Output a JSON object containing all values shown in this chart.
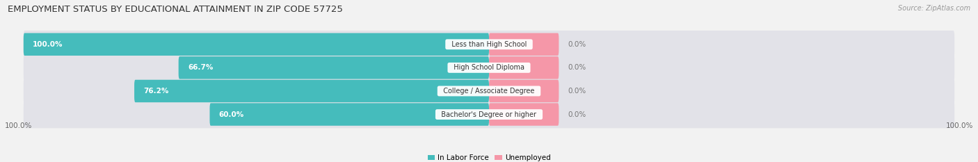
{
  "title": "EMPLOYMENT STATUS BY EDUCATIONAL ATTAINMENT IN ZIP CODE 57725",
  "source": "Source: ZipAtlas.com",
  "categories": [
    "Less than High School",
    "High School Diploma",
    "College / Associate Degree",
    "Bachelor's Degree or higher"
  ],
  "in_labor_force": [
    100.0,
    66.7,
    76.2,
    60.0
  ],
  "unemployed": [
    0.0,
    0.0,
    0.0,
    0.0
  ],
  "labor_force_color": "#45BCBC",
  "unemployed_color": "#F597A8",
  "bg_color": "#F2F2F2",
  "bar_bg_color": "#E2E2E8",
  "title_fontsize": 9.5,
  "label_fontsize": 7.5,
  "bar_height": 0.62,
  "x_left_label": "100.0%",
  "x_right_label": "100.0%"
}
